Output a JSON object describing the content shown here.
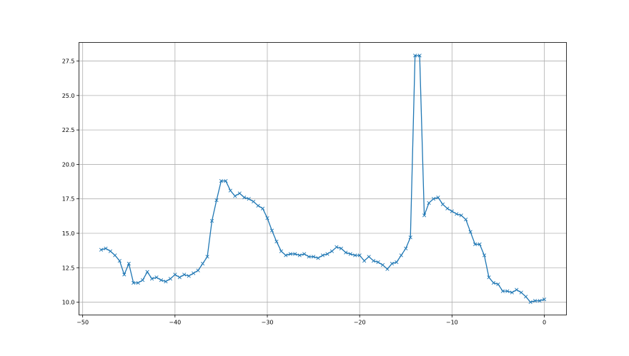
{
  "chart_data": {
    "type": "line",
    "title": "",
    "xlabel": "",
    "ylabel": "",
    "xlim": [
      -50.4,
      2.4
    ],
    "ylim": [
      9.07,
      28.85
    ],
    "grid": true,
    "marker": "x",
    "line_color": "#1f77b4",
    "xticks": [
      -50,
      -40,
      -30,
      -20,
      -10,
      0
    ],
    "xtick_labels": [
      "−50",
      "−40",
      "−30",
      "−20",
      "−10",
      "0"
    ],
    "yticks": [
      10.0,
      12.5,
      15.0,
      17.5,
      20.0,
      22.5,
      25.0,
      27.5
    ],
    "ytick_labels": [
      "10.0",
      "12.5",
      "15.0",
      "17.5",
      "20.0",
      "22.5",
      "25.0",
      "27.5"
    ],
    "x_start": -48,
    "x_step": 0.5,
    "y": [
      13.8,
      13.9,
      13.7,
      13.4,
      13.0,
      12.0,
      12.8,
      11.4,
      11.4,
      11.6,
      12.2,
      11.7,
      11.8,
      11.6,
      11.5,
      11.7,
      12.0,
      11.8,
      12.0,
      11.9,
      12.1,
      12.3,
      12.8,
      13.3,
      15.9,
      17.4,
      18.8,
      18.8,
      18.1,
      17.7,
      17.9,
      17.6,
      17.5,
      17.3,
      17.0,
      16.8,
      16.1,
      15.2,
      14.4,
      13.7,
      13.4,
      13.5,
      13.5,
      13.4,
      13.5,
      13.3,
      13.3,
      13.2,
      13.4,
      13.5,
      13.7,
      14.0,
      13.9,
      13.6,
      13.5,
      13.4,
      13.4,
      13.0,
      13.3,
      13.0,
      12.9,
      12.7,
      12.4,
      12.8,
      12.9,
      13.4,
      13.9,
      14.7,
      27.9,
      27.9,
      16.3,
      17.2,
      17.5,
      17.6,
      17.1,
      16.8,
      16.6,
      16.4,
      16.3,
      16.0,
      15.1,
      14.2,
      14.2,
      13.4,
      11.8,
      11.4,
      11.3,
      10.8,
      10.8,
      10.7,
      10.9,
      10.7,
      10.4,
      10.0,
      10.1,
      10.1,
      10.2
    ]
  }
}
